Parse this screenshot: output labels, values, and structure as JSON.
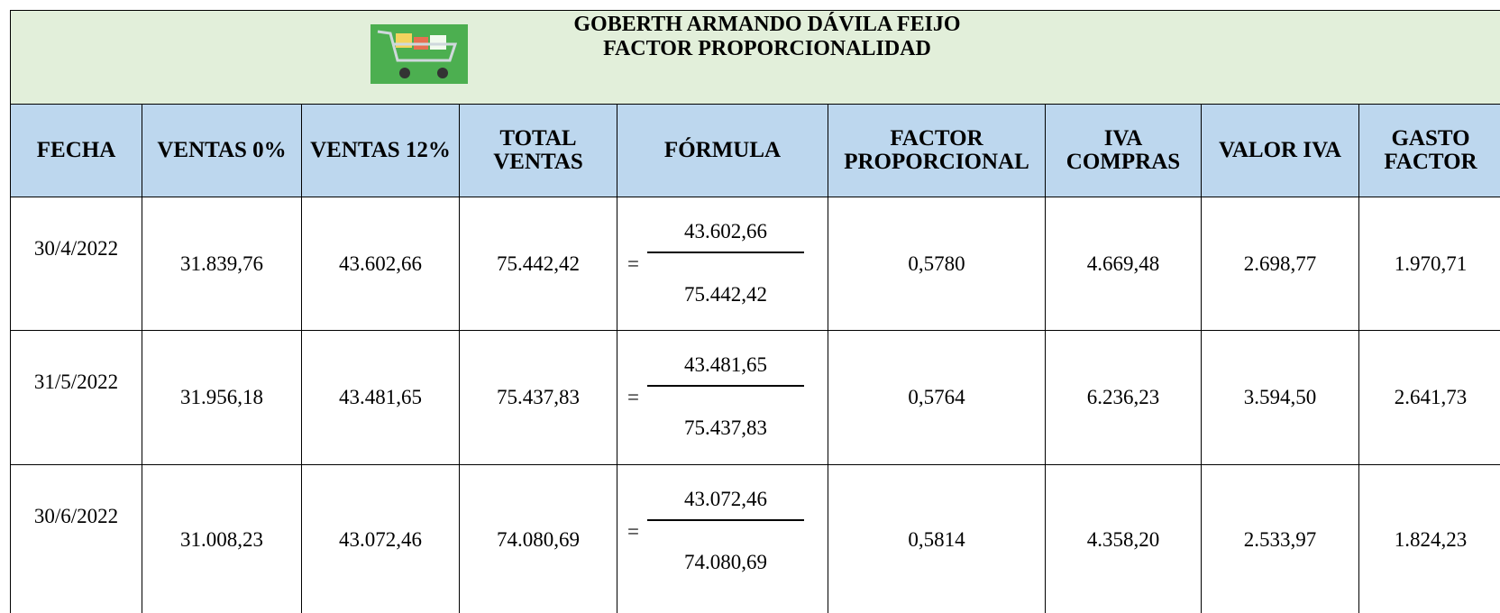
{
  "header": {
    "title": [
      "GOBERTH ARMANDO DÁVILA FEIJO",
      "FACTOR PROPORCIONALIDAD"
    ]
  },
  "table": {
    "columns": [
      "FECHA",
      "VENTAS 0%",
      "VENTAS 12%",
      "TOTAL VENTAS",
      "FÓRMULA",
      "FACTOR PROPORCIONAL",
      "IVA COMPRAS",
      "VALOR IVA",
      "GASTO FACTOR"
    ],
    "rows": [
      [
        "30/4/2022",
        "31.839,76",
        "43.602,66",
        "75.442,42",
        {
          "sign": "=",
          "numerator": "43.602,66",
          "denominator": "75.442,42"
        },
        "0,5780",
        "4.669,48",
        "2.698,77",
        "1.970,71"
      ],
      [
        "31/5/2022",
        "31.956,18",
        "43.481,65",
        "75.437,83",
        {
          "sign": "=",
          "numerator": "43.481,65",
          "denominator": "75.437,83"
        },
        "0,5764",
        "6.236,23",
        "3.594,50",
        "2.641,73"
      ],
      [
        "30/6/2022",
        "31.008,23",
        "43.072,46",
        "74.080,69",
        {
          "sign": "=",
          "numerator": "43.072,46",
          "denominator": "74.080,69"
        },
        "0,5814",
        "4.358,20",
        "2.533,97",
        "1.824,23"
      ]
    ]
  }
}
